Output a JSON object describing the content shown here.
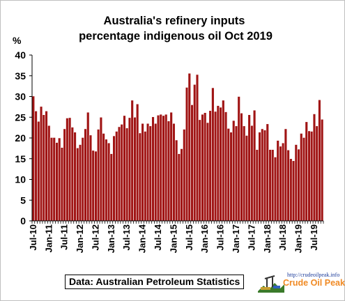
{
  "chart_data": {
    "type": "bar",
    "title": [
      "Australia's refinery inputs",
      "percentage indigenous oil Oct 2019"
    ],
    "ylabel": "%",
    "xlabel": "",
    "ylim": [
      0,
      40
    ],
    "yticks": [
      0,
      5,
      10,
      15,
      20,
      25,
      30,
      35,
      40
    ],
    "grid": false,
    "bar_color": "#a01414",
    "bar_edge_color": "#ffffff",
    "x_tick_labels": [
      "Jul-10",
      "Jan-11",
      "Jul-11",
      "Jan-12",
      "Jul-12",
      "Jan-13",
      "Jul-13",
      "Jan-14",
      "Jul-14",
      "Jan-15",
      "Jul-15",
      "Jan-16",
      "Jul-16",
      "Jan-17",
      "Jul-17",
      "Jan-18",
      "Jul-18",
      "Jan-19",
      "Jul-19"
    ],
    "start_month": "Jul-10",
    "end_month": "Oct-19",
    "values": [
      30.1,
      26.5,
      24.0,
      27.6,
      25.6,
      26.5,
      23.0,
      20.1,
      20.1,
      18.9,
      20.0,
      17.7,
      22.2,
      24.8,
      24.9,
      22.6,
      21.4,
      17.6,
      18.4,
      20.1,
      22.2,
      26.2,
      20.7,
      17.0,
      16.8,
      22.1,
      25.0,
      21.1,
      19.7,
      18.8,
      16.2,
      20.5,
      21.6,
      22.7,
      23.3,
      25.4,
      22.4,
      24.9,
      29.1,
      25.0,
      28.2,
      21.2,
      23.5,
      21.6,
      23.5,
      22.9,
      25.1,
      23.5,
      25.5,
      25.7,
      25.4,
      25.7,
      24.1,
      26.2,
      23.5,
      19.5,
      16.2,
      17.4,
      22.1,
      32.2,
      35.6,
      28.0,
      32.9,
      35.3,
      24.4,
      25.7,
      26.1,
      23.7,
      26.6,
      32.1,
      26.4,
      27.8,
      27.4,
      29.1,
      26.3,
      22.3,
      21.4,
      24.2,
      22.9,
      30.0,
      26.0,
      22.9,
      20.6,
      25.6,
      23.0,
      26.7,
      17.2,
      21.4,
      22.2,
      21.9,
      23.4,
      17.2,
      17.2,
      15.4,
      19.4,
      18.0,
      18.8,
      22.2,
      17.1,
      15.0,
      14.5,
      18.4,
      17.3,
      21.1,
      20.1,
      23.9,
      21.7,
      21.6,
      25.8,
      22.9,
      29.2,
      24.5
    ]
  },
  "source_label": "Data: Australian Petroleum Statistics",
  "logo": {
    "url_text": "http://crudeoilpeak.info",
    "name": "Crude Oil Peak"
  }
}
